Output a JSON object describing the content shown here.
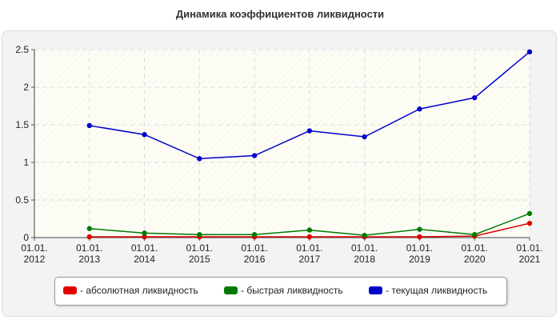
{
  "title": "Динамика коэффициентов ликвидности",
  "colors": {
    "absolute": "#e00000",
    "quick": "#007a00",
    "current": "#0000cc",
    "plot_bg": "#fdfdf6",
    "grid": "#dddddd"
  },
  "chart_data": {
    "type": "line",
    "title": "Динамика коэффициентов ликвидности",
    "xlabel": "",
    "ylabel": "",
    "x_tick_labels": [
      [
        "01.01.",
        "2012"
      ],
      [
        "01.01.",
        "2013"
      ],
      [
        "01.01.",
        "2014"
      ],
      [
        "01.01.",
        "2015"
      ],
      [
        "01.01.",
        "2016"
      ],
      [
        "01.01.",
        "2017"
      ],
      [
        "01.01.",
        "2018"
      ],
      [
        "01.01.",
        "2019"
      ],
      [
        "01.01.",
        "2020"
      ],
      [
        "01.01.",
        "2021"
      ]
    ],
    "x": [
      "01.01.2012",
      "01.01.2013",
      "01.01.2014",
      "01.01.2015",
      "01.01.2016",
      "01.01.2017",
      "01.01.2018",
      "01.01.2019",
      "01.01.2020",
      "01.01.2021"
    ],
    "ylim": [
      0,
      2.5
    ],
    "y_ticks": [
      "0",
      "0.5",
      "1",
      "1.5",
      "2",
      "2.5"
    ],
    "grid": true,
    "legend_position": "bottom",
    "series": [
      {
        "name": "- абсолютная ликвидность",
        "color_key": "absolute",
        "x": [
          "01.01.2013",
          "01.01.2014",
          "01.01.2015",
          "01.01.2016",
          "01.01.2017",
          "01.01.2018",
          "01.01.2019",
          "01.01.2020",
          "01.01.2021"
        ],
        "values": [
          0.01,
          0.01,
          0.01,
          0.01,
          0.01,
          0.01,
          0.01,
          0.02,
          0.19
        ]
      },
      {
        "name": "- быстрая ликвидность",
        "color_key": "quick",
        "x": [
          "01.01.2013",
          "01.01.2014",
          "01.01.2015",
          "01.01.2016",
          "01.01.2017",
          "01.01.2018",
          "01.01.2019",
          "01.01.2020",
          "01.01.2021"
        ],
        "values": [
          0.12,
          0.06,
          0.04,
          0.04,
          0.1,
          0.03,
          0.11,
          0.04,
          0.32
        ]
      },
      {
        "name": "- текущая ликвидность",
        "color_key": "current",
        "x": [
          "01.01.2013",
          "01.01.2014",
          "01.01.2015",
          "01.01.2016",
          "01.01.2017",
          "01.01.2018",
          "01.01.2019",
          "01.01.2020",
          "01.01.2021"
        ],
        "values": [
          1.49,
          1.37,
          1.05,
          1.09,
          1.42,
          1.34,
          1.71,
          1.86,
          2.47
        ]
      }
    ]
  }
}
